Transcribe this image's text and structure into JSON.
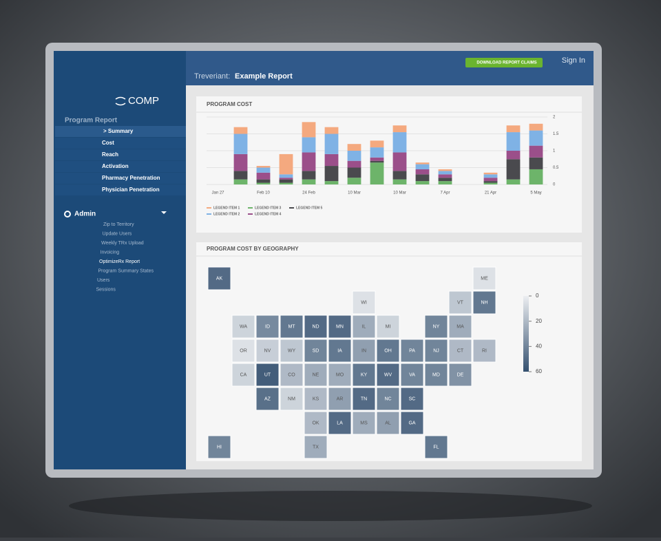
{
  "sidebar": {
    "logo": "COMP",
    "section": "Program Report",
    "items": [
      "> Summary",
      "Cost",
      "Reach",
      "Activation",
      "Pharmacy Penetration",
      "Physician Penetration"
    ],
    "admin_title": "Admin",
    "admin_items": [
      "Zip to Territory",
      "Update Users",
      "Weekly TRx Upload",
      "Invoicing",
      "OptimizeRx Report",
      "Program Summary States",
      "Users",
      "Sessions"
    ]
  },
  "header": {
    "brand": "Treveriant:",
    "report": "Example Report",
    "button": "DOWNLOAD REPORT CLAIMS",
    "sign_in": "Sign In"
  },
  "chart_data": [
    {
      "type": "bar",
      "stacked": true,
      "title": "PROGRAM COST",
      "categories": [
        "Jan 27",
        null,
        "Feb 10",
        null,
        "24 Feb",
        null,
        "10 Mar",
        null,
        "10 Mar",
        null,
        "7 Apr",
        null,
        "21 Apr",
        null,
        "5 May"
      ],
      "series": [
        {
          "name": "LEGEND ITEM 3",
          "color": "#6db46a",
          "values": [
            null,
            0.15,
            0.05,
            0.05,
            0.15,
            0.1,
            0.2,
            0.65,
            0.15,
            0.1,
            0.1,
            null,
            0.05,
            0.15,
            0.45
          ]
        },
        {
          "name": "LEGEND ITEM 5",
          "color": "#4a4a4e",
          "values": [
            null,
            0.25,
            0.1,
            0.1,
            0.25,
            0.45,
            0.3,
            0.05,
            0.25,
            0.2,
            0.1,
            null,
            0.05,
            0.6,
            0.35
          ]
        },
        {
          "name": "LEGEND ITEM 4",
          "color": "#9b4f8a",
          "values": [
            null,
            0.5,
            0.2,
            0.05,
            0.55,
            0.35,
            0.2,
            0.1,
            0.55,
            0.15,
            0.1,
            null,
            0.1,
            0.25,
            0.35
          ]
        },
        {
          "name": "LEGEND ITEM 2",
          "color": "#7fb2e5",
          "values": [
            null,
            0.6,
            0.15,
            0.1,
            0.45,
            0.6,
            0.3,
            0.3,
            0.6,
            0.15,
            0.1,
            null,
            0.1,
            0.55,
            0.45
          ]
        },
        {
          "name": "LEGEND ITEM 1",
          "color": "#f4a97f",
          "values": [
            null,
            0.2,
            0.05,
            0.6,
            0.45,
            0.2,
            0.2,
            0.2,
            0.2,
            0.05,
            0.05,
            null,
            0.05,
            0.2,
            0.2
          ]
        }
      ],
      "ylim": [
        0,
        2
      ],
      "yticks": [
        0,
        0.5,
        1,
        1.5,
        2
      ],
      "grid": true
    },
    {
      "type": "choropleth",
      "title": "PROGRAM COST BY GEOGRAPHY",
      "regions": [
        "AK",
        "ME",
        "WI",
        "VT",
        "NH",
        "WA",
        "ID",
        "MT",
        "ND",
        "MN",
        "IL",
        "MI",
        "NY",
        "MA",
        "OR",
        "NV",
        "WY",
        "SD",
        "IA",
        "IN",
        "OH",
        "PA",
        "NJ",
        "CT",
        "RI",
        "CA",
        "UT",
        "CO",
        "NE",
        "MO",
        "KY",
        "WV",
        "VA",
        "MD",
        "DE",
        "AZ",
        "NM",
        "KS",
        "AR",
        "TN",
        "NC",
        "SC",
        "OK",
        "LA",
        "MS",
        "AL",
        "GA",
        "HI",
        "TX",
        "FL"
      ],
      "values": [
        50,
        5,
        5,
        15,
        45,
        10,
        38,
        45,
        50,
        50,
        25,
        10,
        40,
        25,
        5,
        12,
        15,
        40,
        45,
        30,
        45,
        40,
        40,
        20,
        20,
        10,
        55,
        20,
        25,
        25,
        45,
        50,
        40,
        40,
        35,
        48,
        10,
        20,
        30,
        50,
        40,
        50,
        20,
        50,
        25,
        30,
        50,
        40,
        25,
        45
      ],
      "clim": [
        0,
        60
      ],
      "cticks": [
        0,
        20,
        40,
        60
      ],
      "colors": [
        "#eceef1",
        "#34506f"
      ]
    }
  ]
}
